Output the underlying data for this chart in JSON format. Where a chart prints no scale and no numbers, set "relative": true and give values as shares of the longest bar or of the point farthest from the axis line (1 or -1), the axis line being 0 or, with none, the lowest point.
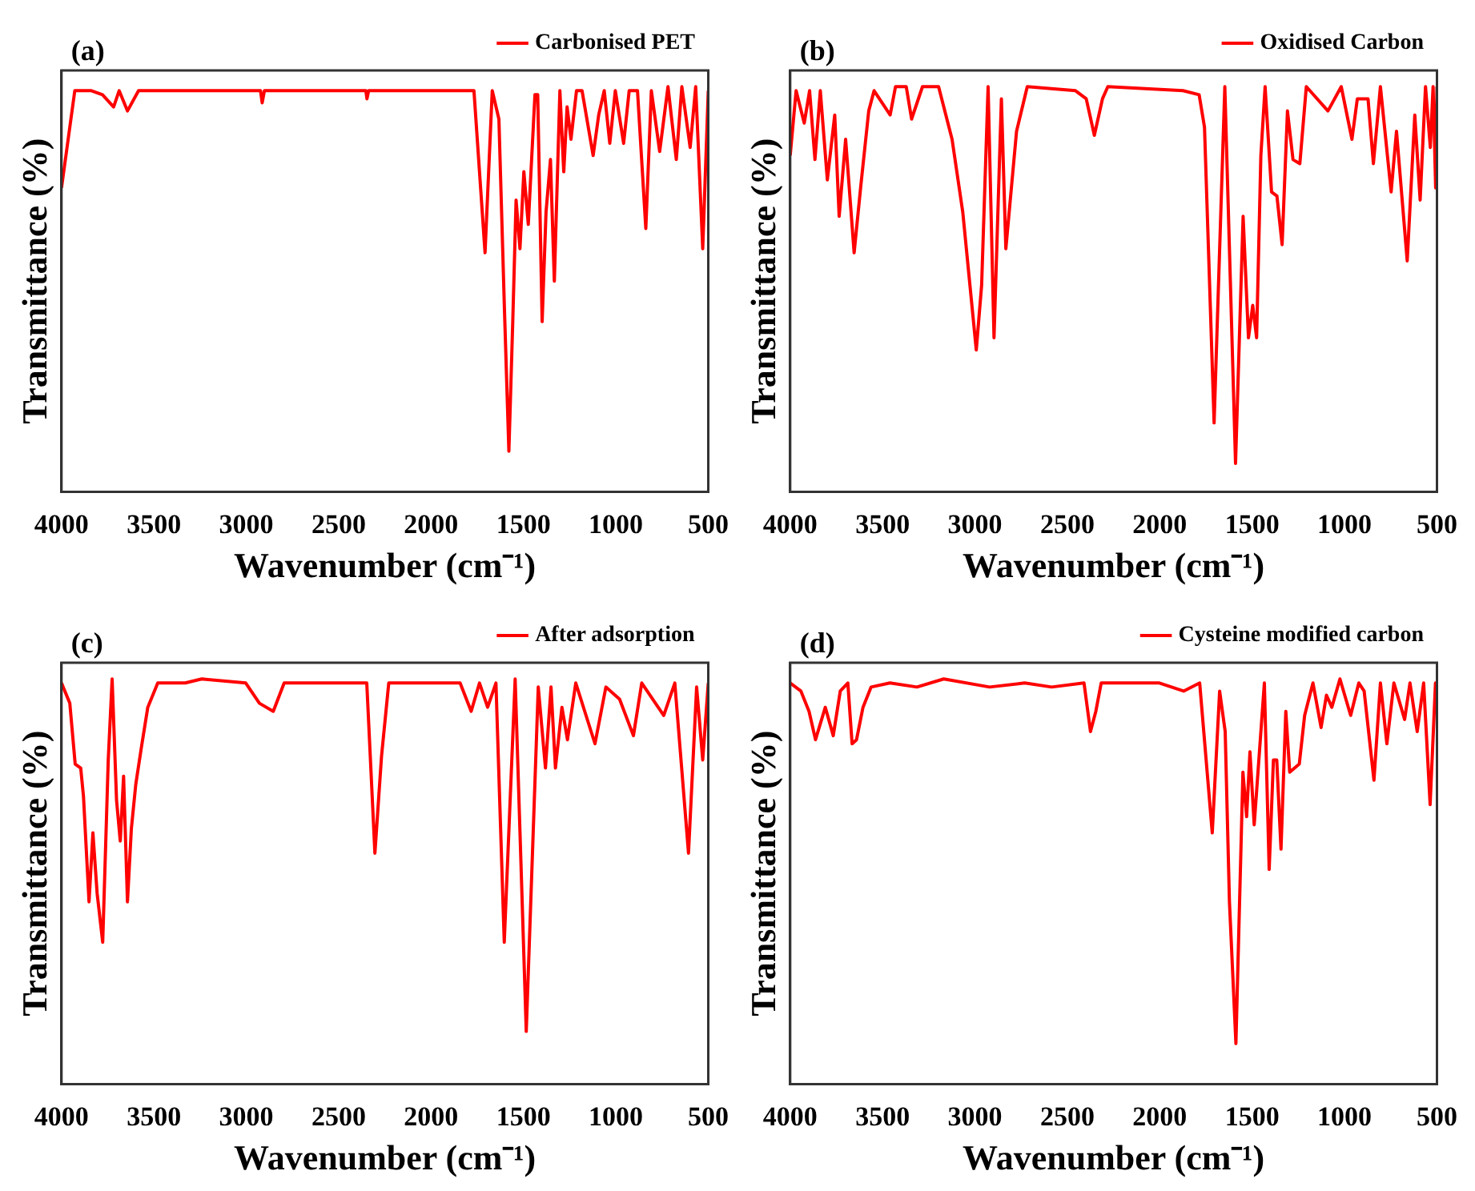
{
  "chart_data": [
    {
      "type": "line",
      "relative": true,
      "annotations": [
        "(a)"
      ],
      "xlabel": "Wavenumber (cm⁻¹)",
      "ylabel": "Transmittance (%)",
      "xlim": [
        4000,
        500
      ],
      "xticks": [
        4000,
        3500,
        3000,
        2500,
        2000,
        1500,
        1000,
        500
      ],
      "legend": "top right",
      "x": [
        4000,
        3928,
        3838,
        3778,
        3718,
        3688,
        3643,
        3583,
        3418,
        2923,
        2914,
        2902,
        2353,
        2347,
        2338,
        1768,
        1708,
        1669,
        1633,
        1603,
        1579,
        1558,
        1540,
        1519,
        1498,
        1474,
        1438,
        1423,
        1399,
        1378,
        1354,
        1333,
        1303,
        1282,
        1264,
        1243,
        1213,
        1183,
        1123,
        1093,
        1063,
        1033,
        1003,
        958,
        928,
        883,
        838,
        808,
        763,
        718,
        673,
        643,
        598,
        568,
        530,
        500
      ],
      "series": [
        {
          "name": "Carbonised PET",
          "color": "#ff0000",
          "values": [
            0.75,
            0.99,
            0.99,
            0.98,
            0.95,
            0.99,
            0.94,
            0.99,
            0.99,
            0.99,
            0.96,
            0.99,
            0.99,
            0.97,
            0.99,
            0.99,
            0.59,
            0.99,
            0.92,
            0.45,
            0.1,
            0.42,
            0.72,
            0.6,
            0.79,
            0.66,
            0.98,
            0.98,
            0.42,
            0.69,
            0.82,
            0.52,
            0.99,
            0.79,
            0.95,
            0.87,
            0.99,
            0.99,
            0.83,
            0.93,
            0.99,
            0.86,
            0.99,
            0.86,
            0.99,
            0.99,
            0.65,
            0.99,
            0.84,
            1,
            0.82,
            1,
            0.85,
            1,
            0.6,
            0.99
          ]
        }
      ]
    },
    {
      "type": "line",
      "relative": true,
      "annotations": [
        "(b)"
      ],
      "xlabel": "Wavenumber (cm⁻¹)",
      "ylabel": "Transmittance (%)",
      "xlim": [
        4000,
        500
      ],
      "xticks": [
        4000,
        3500,
        3000,
        2500,
        2000,
        1500,
        1000,
        500
      ],
      "legend": "top right",
      "x": [
        4000,
        3968,
        3924,
        3895,
        3866,
        3837,
        3799,
        3759,
        3735,
        3700,
        3654,
        3619,
        3575,
        3546,
        3459,
        3430,
        3372,
        3343,
        3284,
        3197,
        3124,
        3066,
        2993,
        2964,
        2929,
        2897,
        2857,
        2833,
        2775,
        2717,
        2456,
        2398,
        2354,
        2310,
        2281,
        1874,
        1787,
        1758,
        1706,
        1648,
        1590,
        1549,
        1520,
        1497,
        1476,
        1453,
        1430,
        1395,
        1366,
        1338,
        1309,
        1279,
        1242,
        1207,
        1090,
        1018,
        960,
        931,
        873,
        844,
        806,
        748,
        719,
        661,
        620,
        591,
        562,
        536,
        521,
        507,
        500
      ],
      "series": [
        {
          "name": "Oxidised Carbon",
          "color": "#ff0000",
          "values": [
            0.83,
            0.99,
            0.91,
            0.99,
            0.82,
            0.99,
            0.77,
            0.93,
            0.68,
            0.87,
            0.59,
            0.75,
            0.94,
            0.99,
            0.93,
            1,
            1,
            0.92,
            1,
            1,
            0.87,
            0.69,
            0.35,
            0.51,
            1,
            0.38,
            0.97,
            0.6,
            0.89,
            1,
            0.99,
            0.97,
            0.88,
            0.97,
            1,
            0.99,
            0.98,
            0.9,
            0.17,
            1,
            0.07,
            0.68,
            0.38,
            0.46,
            0.38,
            0.83,
            1,
            0.74,
            0.73,
            0.61,
            0.94,
            0.82,
            0.81,
            1,
            0.94,
            1,
            0.87,
            0.97,
            0.97,
            0.81,
            1,
            0.74,
            0.89,
            0.57,
            0.93,
            0.72,
            1,
            0.85,
            1,
            0.75,
            1
          ]
        }
      ]
    },
    {
      "type": "line",
      "relative": true,
      "annotations": [
        "(c)"
      ],
      "xlabel": "Wavenumber (cm⁻¹)",
      "ylabel": "Transmittance (%)",
      "xlim": [
        4000,
        500
      ],
      "xticks": [
        4000,
        3500,
        3000,
        2500,
        2000,
        1500,
        1000,
        500
      ],
      "legend": "top right",
      "x": [
        4000,
        3955,
        3926,
        3896,
        3881,
        3851,
        3830,
        3807,
        3777,
        3747,
        3726,
        3702,
        3682,
        3664,
        3643,
        3622,
        3598,
        3568,
        3533,
        3479,
        3330,
        3241,
        3003,
        2929,
        2854,
        2795,
        2348,
        2304,
        2268,
        2229,
        1843,
        1783,
        1738,
        1694,
        1649,
        1604,
        1545,
        1485,
        1420,
        1381,
        1351,
        1327,
        1292,
        1262,
        1217,
        1113,
        1054,
        980,
        905,
        860,
        741,
        681,
        607,
        563,
        530,
        500
      ],
      "series": [
        {
          "name": "After adsorption",
          "color": "#ff0000",
          "values": [
            0.99,
            0.94,
            0.79,
            0.78,
            0.71,
            0.45,
            0.62,
            0.47,
            0.35,
            0.8,
            1,
            0.7,
            0.6,
            0.76,
            0.45,
            0.63,
            0.74,
            0.83,
            0.93,
            0.99,
            0.99,
            1,
            0.99,
            0.94,
            0.92,
            0.99,
            0.99,
            0.57,
            0.81,
            0.99,
            0.99,
            0.92,
            0.99,
            0.93,
            0.99,
            0.35,
            1,
            0.13,
            0.98,
            0.78,
            0.98,
            0.78,
            0.93,
            0.85,
            0.99,
            0.84,
            0.98,
            0.95,
            0.86,
            0.99,
            0.91,
            0.99,
            0.57,
            0.98,
            0.8,
            0.99
          ]
        }
      ]
    },
    {
      "type": "line",
      "relative": true,
      "annotations": [
        "(d)"
      ],
      "xlabel": "Wavenumber (cm⁻¹)",
      "ylabel": "Transmittance (%)",
      "xlim": [
        4000,
        500
      ],
      "xticks": [
        4000,
        3500,
        3000,
        2500,
        2000,
        1500,
        1000,
        500
      ],
      "legend": "top right",
      "x": [
        4000,
        3942,
        3898,
        3863,
        3810,
        3767,
        3729,
        3688,
        3665,
        3641,
        3606,
        3562,
        3460,
        3314,
        3169,
        2921,
        2731,
        2585,
        2410,
        2375,
        2346,
        2317,
        2002,
        1871,
        1784,
        1716,
        1676,
        1646,
        1623,
        1588,
        1550,
        1530,
        1512,
        1489,
        1434,
        1408,
        1385,
        1367,
        1344,
        1318,
        1297,
        1245,
        1216,
        1171,
        1127,
        1098,
        1069,
        1025,
        967,
        923,
        894,
        841,
        806,
        771,
        733,
        675,
        646,
        607,
        572,
        537,
        508,
        500
      ],
      "series": [
        {
          "name": "Cysteine modified carbon",
          "color": "#ff0000",
          "values": [
            0.99,
            0.97,
            0.92,
            0.85,
            0.93,
            0.86,
            0.97,
            0.99,
            0.84,
            0.85,
            0.93,
            0.98,
            0.99,
            0.98,
            1,
            0.98,
            0.99,
            0.98,
            0.99,
            0.87,
            0.92,
            0.99,
            0.99,
            0.97,
            0.99,
            0.62,
            0.97,
            0.87,
            0.45,
            0.1,
            0.77,
            0.66,
            0.82,
            0.64,
            0.99,
            0.53,
            0.8,
            0.8,
            0.58,
            0.92,
            0.77,
            0.79,
            0.91,
            0.99,
            0.88,
            0.96,
            0.93,
            1,
            0.91,
            0.99,
            0.97,
            0.75,
            0.99,
            0.84,
            0.99,
            0.9,
            0.99,
            0.87,
            0.99,
            0.69,
            0.99,
            0.99
          ]
        }
      ]
    }
  ]
}
